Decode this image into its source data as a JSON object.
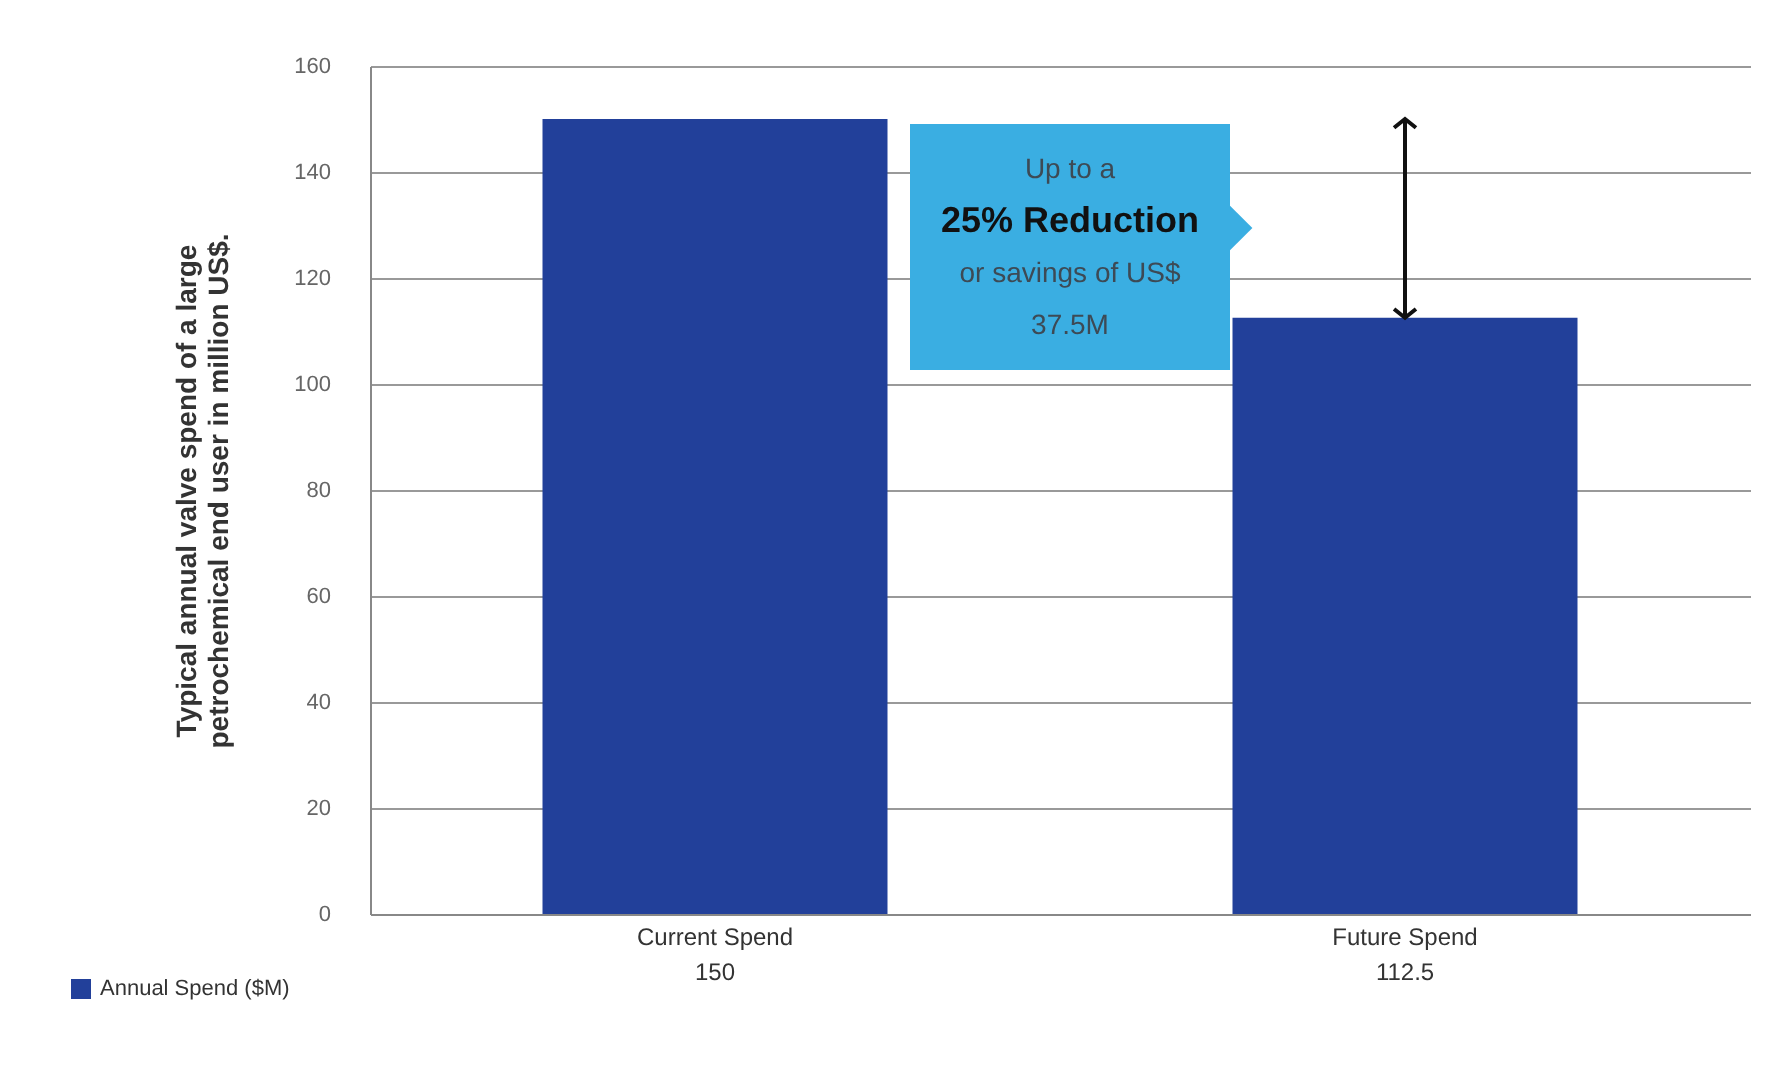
{
  "chart_data": {
    "type": "bar",
    "ylabel": "Typical annual valve spend of a large petrochemical end user in million US$.",
    "categories": [
      "Current Spend",
      "Future Spend"
    ],
    "series": [
      {
        "name": "Annual Spend ($M)",
        "color": "#22409a",
        "values": [
          150,
          112.5
        ]
      }
    ],
    "ylim": [
      0,
      160
    ],
    "yticks": [
      0,
      20,
      40,
      60,
      80,
      100,
      120,
      140,
      160
    ],
    "grid": "y",
    "legend": "bottom left",
    "data_labels": true,
    "annotations": [
      "Up to a",
      "25% Reduction",
      "or savings of US$",
      "37.5M"
    ]
  }
}
